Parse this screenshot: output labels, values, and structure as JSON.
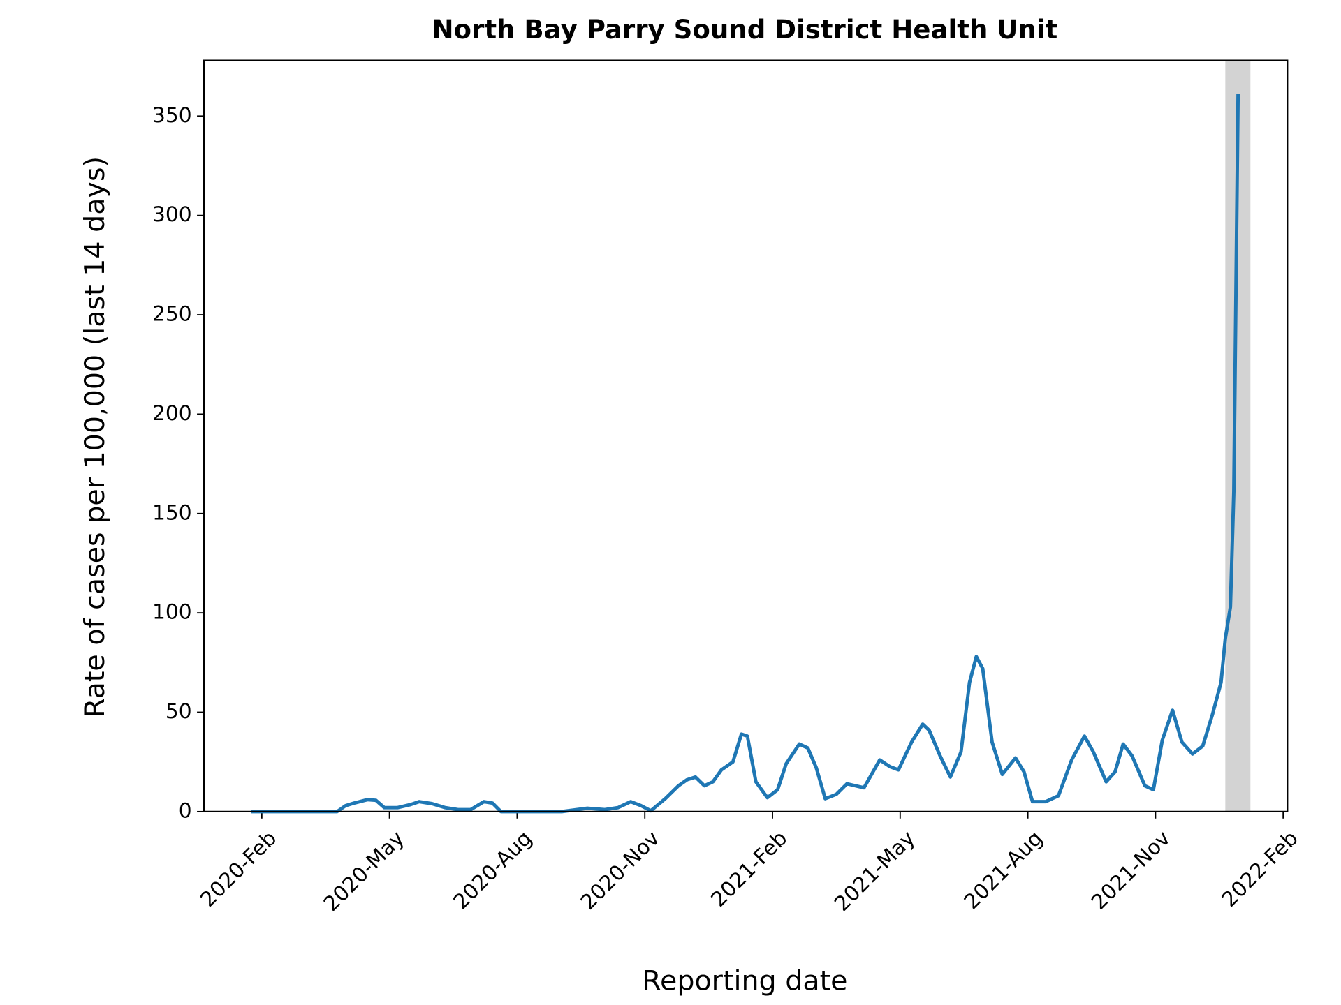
{
  "chart_data": {
    "type": "line",
    "title": "North Bay Parry Sound District Health Unit",
    "x_label": "Reporting date",
    "y_label": "Rate of cases per 100,000 (last 14 days)",
    "color": "#1f77b4",
    "x": [
      -0.26,
      1.77,
      1.97,
      2.17,
      2.48,
      2.68,
      2.88,
      3.19,
      3.49,
      3.7,
      4.0,
      4.31,
      4.61,
      4.91,
      5.22,
      5.42,
      5.62,
      7.05,
      7.65,
      8.06,
      8.37,
      8.67,
      8.91,
      9.14,
      9.48,
      9.79,
      9.99,
      10.19,
      10.4,
      10.6,
      10.8,
      11.07,
      11.27,
      11.41,
      11.61,
      11.88,
      12.12,
      12.32,
      12.63,
      12.83,
      13.03,
      13.24,
      13.5,
      13.75,
      13.95,
      14.15,
      14.52,
      14.76,
      14.96,
      15.27,
      15.53,
      15.68,
      15.94,
      16.18,
      16.43,
      16.63,
      16.79,
      16.94,
      17.16,
      17.4,
      17.71,
      17.91,
      18.11,
      18.42,
      18.72,
      19.03,
      19.33,
      19.54,
      19.84,
      20.05,
      20.24,
      20.45,
      20.75,
      20.95,
      21.16,
      21.4,
      21.62,
      21.87,
      22.11,
      22.34,
      22.54,
      22.64,
      22.76,
      22.84,
      22.94
    ],
    "values": [
      0,
      0,
      3,
      4.3,
      6,
      5.7,
      2,
      2,
      3.5,
      5,
      4,
      2,
      1,
      1,
      5,
      4.3,
      0,
      0,
      1.7,
      1,
      2,
      5,
      3,
      0.4,
      6.5,
      13,
      16,
      17.4,
      13,
      15,
      21,
      25,
      39,
      38,
      15,
      7,
      11,
      24,
      34,
      32,
      22,
      6.5,
      8.7,
      14,
      13,
      12,
      26,
      22.6,
      21,
      35,
      44,
      41,
      28,
      17.4,
      30,
      65,
      78,
      72,
      35,
      18.7,
      27,
      20,
      5,
      5,
      8,
      26,
      38,
      30,
      15,
      20,
      34,
      28,
      13,
      11,
      36,
      51,
      35,
      29,
      33,
      49,
      65,
      87,
      103,
      161,
      361
    ],
    "xlim": [
      -1.36,
      24.1
    ],
    "xticks": [
      {
        "value": 0,
        "label": "2020-Feb"
      },
      {
        "value": 3,
        "label": "2020-May"
      },
      {
        "value": 6,
        "label": "2020-Aug"
      },
      {
        "value": 9,
        "label": "2020-Nov"
      },
      {
        "value": 12,
        "label": "2021-Feb"
      },
      {
        "value": 15,
        "label": "2021-May"
      },
      {
        "value": 18,
        "label": "2021-Aug"
      },
      {
        "value": 21,
        "label": "2021-Nov"
      },
      {
        "value": 24,
        "label": "2022-Feb"
      }
    ],
    "ylim": [
      0,
      378
    ],
    "yticks": [
      0,
      50,
      100,
      150,
      200,
      250,
      300,
      350
    ],
    "shaded_region": [
      22.64,
      23.23
    ],
    "shaded_color": "#d3d3d3"
  }
}
